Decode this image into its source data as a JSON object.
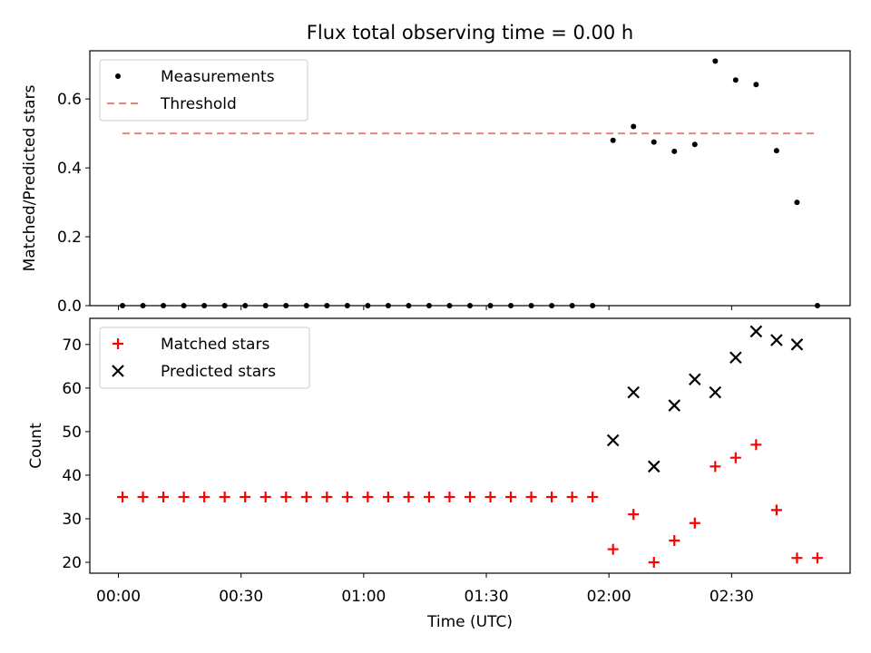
{
  "title": "Flux total observing time = 0.00 h",
  "xlabel": "Time (UTC)",
  "chart_data": [
    {
      "type": "scatter",
      "ylabel": "Matched/Predicted stars",
      "xlim_minutes": [
        -7,
        179
      ],
      "ylim": [
        0,
        0.74
      ],
      "yticks": [
        0.0,
        0.2,
        0.4,
        0.6
      ],
      "ytick_labels": [
        "0.0",
        "0.2",
        "0.4",
        "0.6"
      ],
      "legend": {
        "position": "top-left",
        "entries": [
          "Measurements",
          "Threshold"
        ]
      },
      "series": [
        {
          "name": "Measurements",
          "marker": "dot",
          "color": "#000000",
          "x": [
            "00:01",
            "00:06",
            "00:11",
            "00:16",
            "00:21",
            "00:26",
            "00:31",
            "00:36",
            "00:41",
            "00:46",
            "00:51",
            "00:56",
            "01:01",
            "01:06",
            "01:11",
            "01:16",
            "01:21",
            "01:26",
            "01:31",
            "01:36",
            "01:41",
            "01:46",
            "01:51",
            "01:56",
            "02:01",
            "02:06",
            "02:11",
            "02:16",
            "02:21",
            "02:26",
            "02:31",
            "02:36",
            "02:41",
            "02:46",
            "02:51"
          ],
          "y": [
            0,
            0,
            0,
            0,
            0,
            0,
            0,
            0,
            0,
            0,
            0,
            0,
            0,
            0,
            0,
            0,
            0,
            0,
            0,
            0,
            0,
            0,
            0,
            0,
            0.48,
            0.52,
            0.475,
            0.448,
            0.468,
            0.71,
            0.655,
            0.642,
            0.45,
            0.3,
            0
          ]
        },
        {
          "name": "Threshold",
          "style": "dashed",
          "color": "#f08080",
          "x": [
            "00:01",
            "02:51"
          ],
          "y": [
            0.5,
            0.5
          ]
        }
      ]
    },
    {
      "type": "scatter",
      "ylabel": "Count",
      "xlim_minutes": [
        -7,
        179
      ],
      "ylim": [
        17.5,
        76
      ],
      "yticks": [
        20,
        30,
        40,
        50,
        60,
        70
      ],
      "ytick_labels": [
        "20",
        "30",
        "40",
        "50",
        "60",
        "70"
      ],
      "xtick_labels": [
        "00:00",
        "00:30",
        "01:00",
        "01:30",
        "02:00",
        "02:30"
      ],
      "legend": {
        "position": "top-left",
        "entries": [
          "Matched stars",
          "Predicted stars"
        ]
      },
      "series": [
        {
          "name": "Matched stars",
          "marker": "plus",
          "color": "#ff0000",
          "x": [
            "00:01",
            "00:06",
            "00:11",
            "00:16",
            "00:21",
            "00:26",
            "00:31",
            "00:36",
            "00:41",
            "00:46",
            "00:51",
            "00:56",
            "01:01",
            "01:06",
            "01:11",
            "01:16",
            "01:21",
            "01:26",
            "01:31",
            "01:36",
            "01:41",
            "01:46",
            "01:51",
            "01:56",
            "02:01",
            "02:06",
            "02:11",
            "02:16",
            "02:21",
            "02:26",
            "02:31",
            "02:36",
            "02:41",
            "02:46",
            "02:51"
          ],
          "y": [
            35,
            35,
            35,
            35,
            35,
            35,
            35,
            35,
            35,
            35,
            35,
            35,
            35,
            35,
            35,
            35,
            35,
            35,
            35,
            35,
            35,
            35,
            35,
            35,
            23,
            31,
            20,
            25,
            29,
            42,
            44,
            47,
            32,
            21,
            21
          ]
        },
        {
          "name": "Predicted stars",
          "marker": "x",
          "color": "#000000",
          "x": [
            "02:01",
            "02:06",
            "02:11",
            "02:16",
            "02:21",
            "02:26",
            "02:31",
            "02:36",
            "02:41",
            "02:46"
          ],
          "y": [
            48,
            59,
            42,
            56,
            62,
            59,
            67,
            73,
            71,
            70
          ]
        }
      ]
    }
  ]
}
